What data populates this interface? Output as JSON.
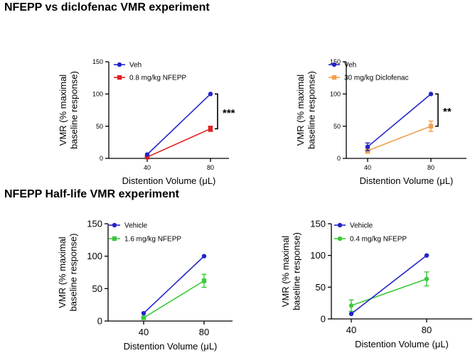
{
  "section_titles": [
    "NFEPP vs diclofenac VMR experiment",
    "NFEPP Half-life VMR experiment"
  ],
  "chart_data": [
    {
      "type": "line",
      "xlabel": "Distention Volume (μL)",
      "ylabel": [
        "VMR (% maximal",
        "baseline response)"
      ],
      "ylim": [
        0,
        150
      ],
      "yticks": [
        "0",
        "50",
        "100",
        "150"
      ],
      "x": [
        "40",
        "80"
      ],
      "series": [
        {
          "name": "Veh",
          "values": [
            6,
            100
          ],
          "errors": [
            0,
            0
          ],
          "color": "#2323c8",
          "marker": "circle"
        },
        {
          "name": "0.8 mg/kg NFEPP",
          "values": [
            2,
            46
          ],
          "errors": [
            1,
            4
          ],
          "color": "#e02020",
          "marker": "square"
        }
      ],
      "annotation": "***"
    },
    {
      "type": "line",
      "xlabel": "Distention Volume (μL)",
      "ylabel": [
        "VMR (% maximal",
        "baseline response)"
      ],
      "ylim": [
        0,
        150
      ],
      "yticks": [
        "0",
        "50",
        "100",
        "150"
      ],
      "x": [
        "40",
        "80"
      ],
      "series": [
        {
          "name": "Veh",
          "values": [
            18,
            100
          ],
          "errors": [
            6,
            0
          ],
          "color": "#2323c8",
          "marker": "circle"
        },
        {
          "name": "30 mg/kg Diclofenac",
          "values": [
            12,
            50
          ],
          "errors": [
            4,
            8
          ],
          "color": "#f0a050",
          "marker": "square"
        }
      ],
      "annotation": "**"
    },
    {
      "type": "line",
      "xlabel": "Distention Volume (μL)",
      "ylabel": [
        "VMR (% maximal",
        "baseline response)"
      ],
      "ylim": [
        0,
        150
      ],
      "yticks": [
        "0",
        "50",
        "100",
        "150"
      ],
      "x": [
        "40",
        "80"
      ],
      "series": [
        {
          "name": "Vehicle",
          "values": [
            12,
            100
          ],
          "errors": [
            0,
            0
          ],
          "color": "#2323c8",
          "marker": "circle"
        },
        {
          "name": "1.6 mg/kg NFEPP",
          "values": [
            5,
            62
          ],
          "errors": [
            2,
            10
          ],
          "color": "#3cc83c",
          "marker": "square"
        }
      ],
      "annotation": ""
    },
    {
      "type": "line",
      "xlabel": "Distention Volume (μL)",
      "ylabel": [
        "VMR (% maximal",
        "baseline response)"
      ],
      "ylim": [
        0,
        150
      ],
      "yticks": [
        "0",
        "50",
        "100",
        "150"
      ],
      "x": [
        "40",
        "80"
      ],
      "series": [
        {
          "name": "Vehicle",
          "values": [
            8,
            100
          ],
          "errors": [
            0,
            0
          ],
          "color": "#2323c8",
          "marker": "circle"
        },
        {
          "name": "0.4 mg/kg NFEPP",
          "values": [
            21,
            63
          ],
          "errors": [
            9,
            11
          ],
          "color": "#3cc83c",
          "marker": "circle"
        }
      ],
      "annotation": ""
    }
  ]
}
